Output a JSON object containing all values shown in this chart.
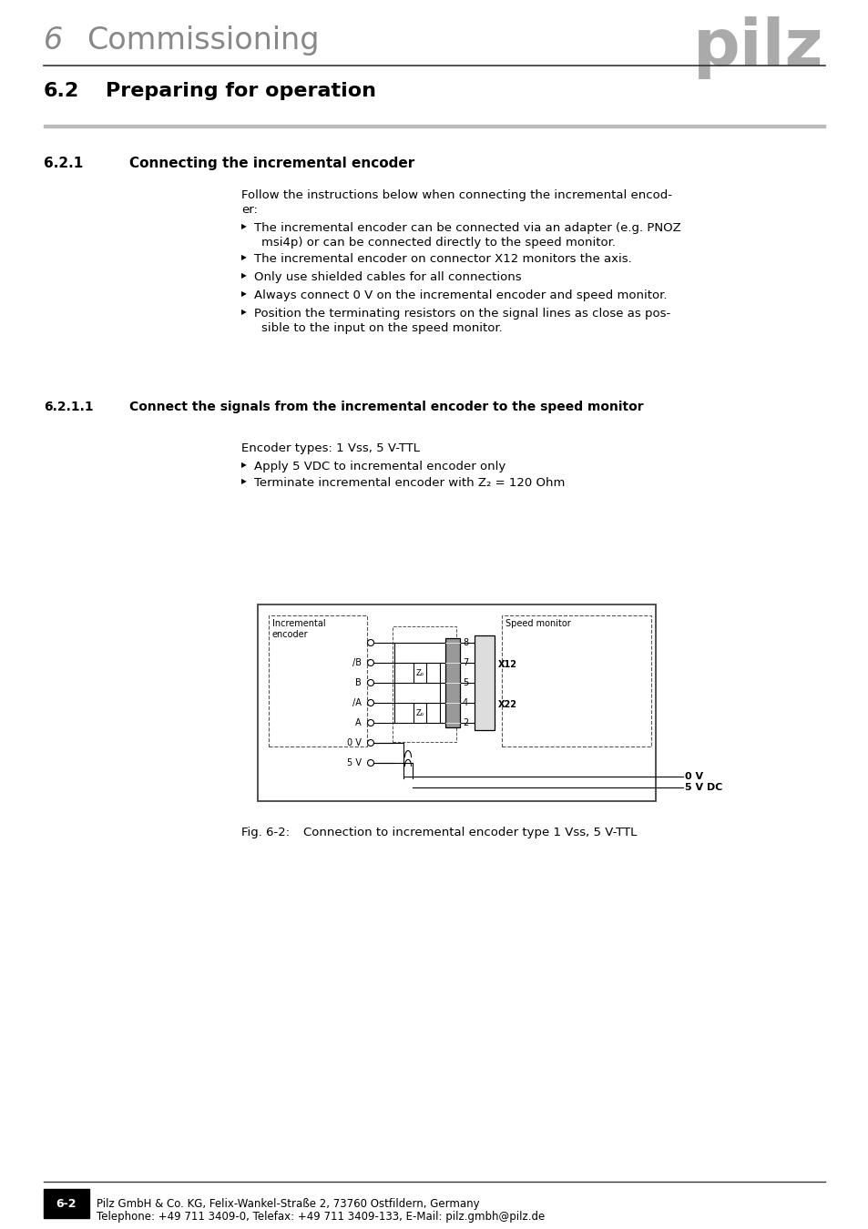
{
  "bg_color": "#ffffff",
  "header_chapter": "6",
  "header_title": "Commissioning",
  "section_label": "6.2",
  "section_title": "Preparing for operation",
  "subsection1_label": "6.2.1",
  "subsection1_title": "Connecting the incremental encoder",
  "body_text_intro": "Follow the instructions below when connecting the incremental encod-\ner:",
  "bullet_items": [
    "The incremental encoder can be connected via an adapter (e.g. PNOZ\nmsi4p) or can be connected directly to the speed monitor.",
    "The incremental encoder on connector X12 monitors the axis.",
    "Only use shielded cables for all connections",
    "Always connect 0 V on the incremental encoder and speed monitor.",
    "Position the terminating resistors on the signal lines as close as pos-\nsible to the input on the speed monitor."
  ],
  "subsection2_label": "6.2.1.1",
  "subsection2_title": "Connect the signals from the incremental encoder to the speed monitor",
  "encoder_types_line": "Encoder types: 1 Vss, 5 V-TTL",
  "bullet2_items": [
    "Apply 5 VDC to incremental encoder only",
    "Terminate incremental encoder with Z₂ = 120 Ohm"
  ],
  "fig_label": "Fig. 6-2:",
  "fig_caption": "Connection to incremental encoder type 1 Vss, 5 V-TTL",
  "footer_page": "6-2",
  "footer_company": "Pilz GmbH & Co. KG, Felix-Wankel-Straße 2, 73760 Ostfildern, Germany",
  "footer_phone": "Telephone: +49 711 3409-0, Telefax: +49 711 3409-133, E-Mail: pilz.gmbh@pilz.de",
  "gray_color": "#aaaaaa",
  "black": "#000000",
  "light_gray": "#cccccc",
  "med_gray": "#999999"
}
